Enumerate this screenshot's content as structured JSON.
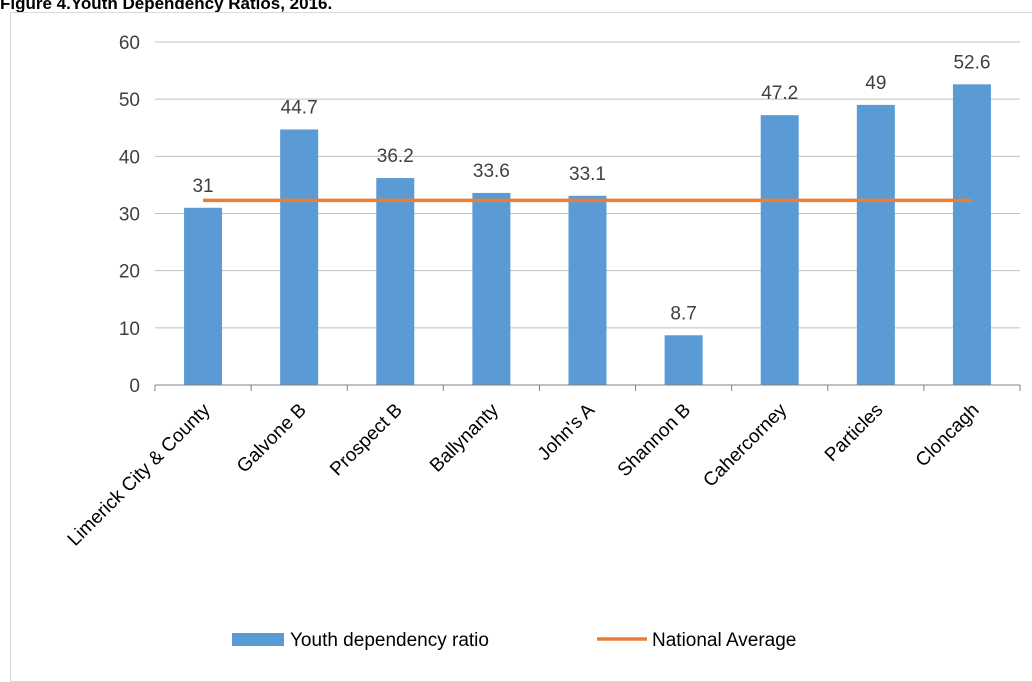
{
  "figure_title": "Figure 4.Youth Dependency Ratios, 2016.",
  "chart_data": {
    "type": "bar",
    "categories": [
      "Limerick City & County",
      "Galvone B",
      "Prospect B",
      "Ballynanty",
      "John's A",
      "Shannon B",
      "Cahercorney",
      "Particles",
      "Cloncagh"
    ],
    "series": [
      {
        "name": "Youth dependency ratio",
        "type": "bar",
        "color": "#5b9bd5",
        "values": [
          31,
          44.7,
          36.2,
          33.6,
          33.1,
          8.7,
          47.2,
          49,
          52.6
        ],
        "data_labels": [
          "31",
          "44.7",
          "36.2",
          "33.6",
          "33.1",
          "8.7",
          "47.2",
          "49",
          "52.6"
        ]
      },
      {
        "name": "National Average",
        "type": "line",
        "color": "#ed7d31",
        "values": [
          32.3,
          32.3,
          32.3,
          32.3,
          32.3,
          32.3,
          32.3,
          32.3,
          32.3
        ]
      }
    ],
    "ylim": [
      0,
      60
    ],
    "yticks": [
      "0",
      "10",
      "20",
      "30",
      "40",
      "50",
      "60"
    ],
    "grid": true,
    "legend_position": "bottom"
  }
}
